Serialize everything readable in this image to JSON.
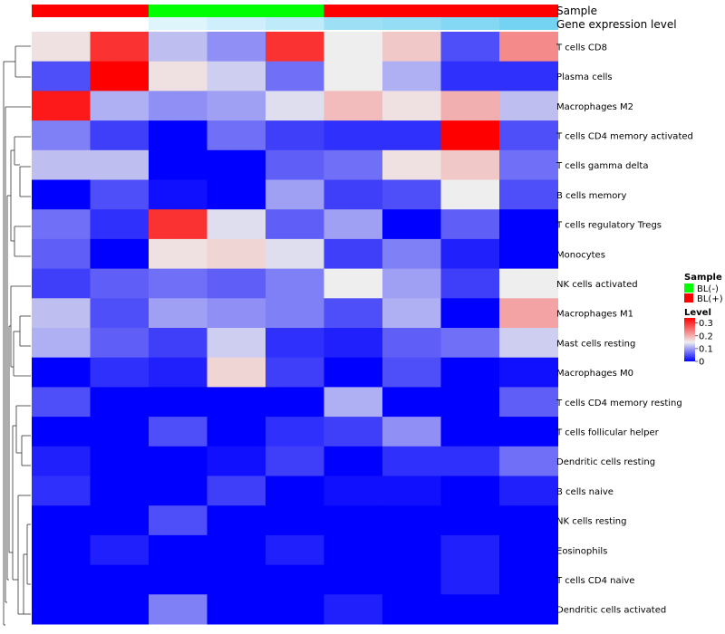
{
  "chart_data": {
    "type": "heatmap",
    "title": "",
    "rows": [
      "T cells CD8",
      "Plasma cells",
      "Macrophages M2",
      "T cells CD4 memory activated",
      "T cells gamma delta",
      "B cells memory",
      "T cells regulatory  Tregs",
      "Monocytes",
      "NK cells activated",
      "Macrophages M1",
      "Mast cells resting",
      "Macrophages M0",
      "T cells CD4 memory resting",
      "T cells follicular helper",
      "Dendritic cells resting",
      "B cells naive",
      "NK cells resting",
      "Eosinophils",
      "T cells CD4 naive",
      "Dendritic cells activated"
    ],
    "columns": 9,
    "values": [
      [
        0.16,
        0.3,
        0.12,
        0.09,
        0.3,
        0.15,
        0.18,
        0.05,
        0.23
      ],
      [
        0.05,
        0.34,
        0.16,
        0.13,
        0.07,
        0.15,
        0.11,
        0.03,
        0.03
      ],
      [
        0.32,
        0.11,
        0.09,
        0.1,
        0.14,
        0.19,
        0.16,
        0.2,
        0.12
      ],
      [
        0.08,
        0.04,
        0.0,
        0.07,
        0.04,
        0.03,
        0.03,
        0.34,
        0.05
      ],
      [
        0.12,
        0.12,
        0.0,
        0.0,
        0.06,
        0.07,
        0.16,
        0.18,
        0.07
      ],
      [
        0.0,
        0.05,
        0.01,
        0.0,
        0.1,
        0.04,
        0.05,
        0.15,
        0.05
      ],
      [
        0.07,
        0.03,
        0.3,
        0.14,
        0.06,
        0.1,
        0.0,
        0.06,
        0.0
      ],
      [
        0.06,
        0.0,
        0.16,
        0.17,
        0.14,
        0.04,
        0.08,
        0.02,
        0.0
      ],
      [
        0.04,
        0.06,
        0.07,
        0.06,
        0.08,
        0.15,
        0.1,
        0.04,
        0.15
      ],
      [
        0.12,
        0.05,
        0.1,
        0.09,
        0.08,
        0.05,
        0.11,
        0.0,
        0.21
      ],
      [
        0.11,
        0.06,
        0.04,
        0.13,
        0.03,
        0.02,
        0.06,
        0.07,
        0.13
      ],
      [
        0.0,
        0.03,
        0.02,
        0.17,
        0.04,
        0.0,
        0.05,
        0.0,
        0.01
      ],
      [
        0.05,
        0.0,
        0.0,
        0.0,
        0.0,
        0.11,
        0.0,
        0.0,
        0.06
      ],
      [
        0.0,
        0.0,
        0.05,
        0.0,
        0.03,
        0.04,
        0.09,
        0.0,
        0.0
      ],
      [
        0.02,
        0.0,
        0.0,
        0.01,
        0.04,
        0.0,
        0.03,
        0.03,
        0.07
      ],
      [
        0.03,
        0.0,
        0.0,
        0.04,
        0.0,
        0.01,
        0.01,
        0.0,
        0.02
      ],
      [
        0.0,
        0.0,
        0.05,
        0.0,
        0.0,
        0.0,
        0.0,
        0.0,
        0.0
      ],
      [
        0.0,
        0.02,
        0.0,
        0.0,
        0.02,
        0.0,
        0.0,
        0.02,
        0.0
      ],
      [
        0.0,
        0.0,
        0.0,
        0.0,
        0.0,
        0.0,
        0.0,
        0.02,
        0.0
      ],
      [
        0.0,
        0.0,
        0.08,
        0.0,
        0.0,
        0.02,
        0.0,
        0.0,
        0.0
      ]
    ],
    "color_scale": {
      "stops": [
        {
          "value": 0,
          "color": "#0000ff"
        },
        {
          "value": 0.15,
          "color": "#eeeeee"
        },
        {
          "value": 0.34,
          "color": "#ff0000"
        }
      ]
    },
    "column_annotations": [
      {
        "name": "Sample",
        "values": [
          "BL(+)",
          "BL(+)",
          "BL(-)",
          "BL(-)",
          "BL(-)",
          "BL(+)",
          "BL(+)",
          "BL(+)",
          "BL(+)"
        ]
      },
      {
        "name": "Gene expression level",
        "values": [
          0.0,
          0.0,
          0.2,
          0.3,
          0.4,
          0.6,
          0.65,
          0.75,
          0.85
        ],
        "colors": [
          "#ffffff",
          "#5ccbf0"
        ]
      }
    ],
    "legend": {
      "position": "right",
      "sample": {
        "title": "Sample",
        "entries": [
          {
            "label": "BL(-)",
            "color": "#00ff00"
          },
          {
            "label": "BL(+)",
            "color": "#ff0000"
          }
        ]
      },
      "level": {
        "title": "Level",
        "ticks": [
          {
            "label": "0.3",
            "value": 0.3
          },
          {
            "label": "0.2",
            "value": 0.2
          },
          {
            "label": "0.1",
            "value": 0.1
          },
          {
            "label": "0",
            "value": 0
          }
        ],
        "range": [
          0,
          0.34
        ]
      }
    },
    "dendrogram": "rows"
  }
}
